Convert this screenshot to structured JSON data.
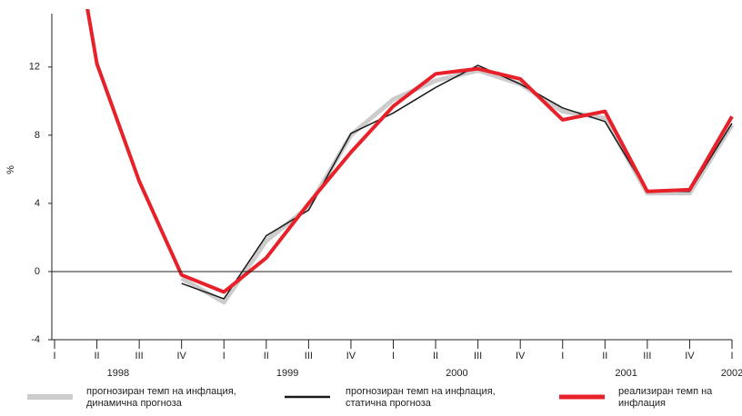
{
  "chart_data": {
    "type": "line",
    "categories": [
      "I",
      "II",
      "III",
      "IV",
      "I",
      "II",
      "III",
      "IV",
      "I",
      "II",
      "III",
      "IV",
      "I",
      "II",
      "III",
      "IV",
      "I"
    ],
    "year_labels": [
      "1998",
      "1999",
      "2000",
      "2001",
      "2002"
    ],
    "y_label": "%",
    "ylim": [
      -4,
      15.4
    ],
    "yticks": [
      -4,
      0,
      4,
      8,
      12
    ],
    "series": [
      {
        "name": [
          "прогнозиран темп на инфлация,",
          "динамична прогноза"
        ],
        "color": "#cccccc",
        "width": 5,
        "values": [
          null,
          null,
          null,
          -0.4,
          -1.8,
          1.8,
          3.8,
          8.0,
          10.1,
          11.2,
          11.8,
          11.0,
          9.4,
          9.0,
          4.6,
          4.6,
          8.6
        ]
      },
      {
        "name": [
          "прогнозиран темп на инфлация,",
          "статична прогноза"
        ],
        "color": "#1a1a1a",
        "width": 1.5,
        "values": [
          null,
          null,
          null,
          -0.7,
          -1.6,
          2.1,
          3.6,
          8.1,
          9.3,
          10.8,
          12.1,
          11.0,
          9.6,
          8.8,
          4.7,
          4.7,
          8.7
        ]
      },
      {
        "name": [
          "реализиран темп на",
          "инфлация"
        ],
        "color": "#e8202a",
        "width": 4,
        "values": [
          26.6,
          12.2,
          5.3,
          -0.2,
          -1.2,
          0.8,
          4.0,
          7.0,
          9.7,
          11.6,
          11.9,
          11.3,
          8.9,
          9.4,
          4.7,
          4.8,
          9.1
        ]
      }
    ]
  }
}
